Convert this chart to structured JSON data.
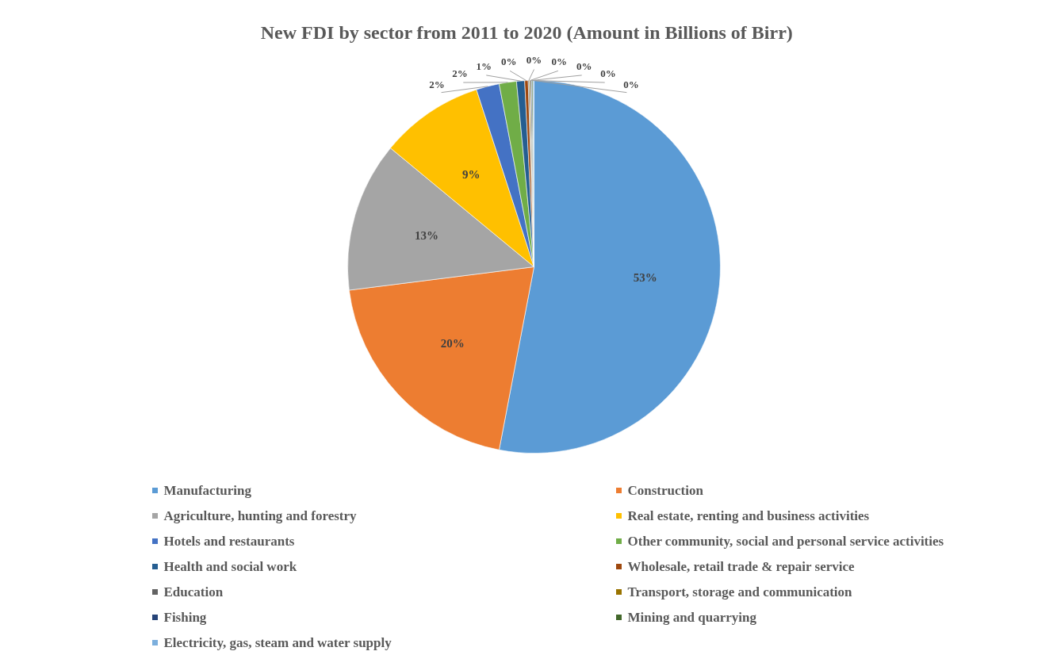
{
  "chart_data": {
    "type": "pie",
    "title": "New FDI by sector from 2011 to 2020 (Amount in Billions of Birr)",
    "categories": [
      "Manufacturing",
      "Construction",
      "Agriculture, hunting and forestry",
      "Real estate, renting and business activities",
      "Hotels and restaurants",
      "Other community, social and personal service activities",
      "Health and social work",
      "Wholesale, retail trade & repair service",
      "Education",
      "Transport, storage and communication",
      "Fishing",
      "Mining and quarrying",
      "Electricity, gas, steam and water supply"
    ],
    "values": [
      53,
      20,
      13,
      9,
      2,
      1.5,
      0.7,
      0.3,
      0.1,
      0.1,
      0.1,
      0.1,
      0.1
    ],
    "colors": [
      "#5b9bd5",
      "#ed7d31",
      "#a5a5a5",
      "#ffc000",
      "#4472c4",
      "#70ad47",
      "#255e91",
      "#9e480e",
      "#636363",
      "#997300",
      "#264478",
      "#43682b",
      "#7cafdd"
    ],
    "value_labels": [
      "53%",
      "20%",
      "13%",
      "9%",
      "2%",
      "2%",
      "1%",
      "0%",
      "0%",
      "0%",
      "0%",
      "0%",
      "0%"
    ],
    "legend": "bottom"
  }
}
